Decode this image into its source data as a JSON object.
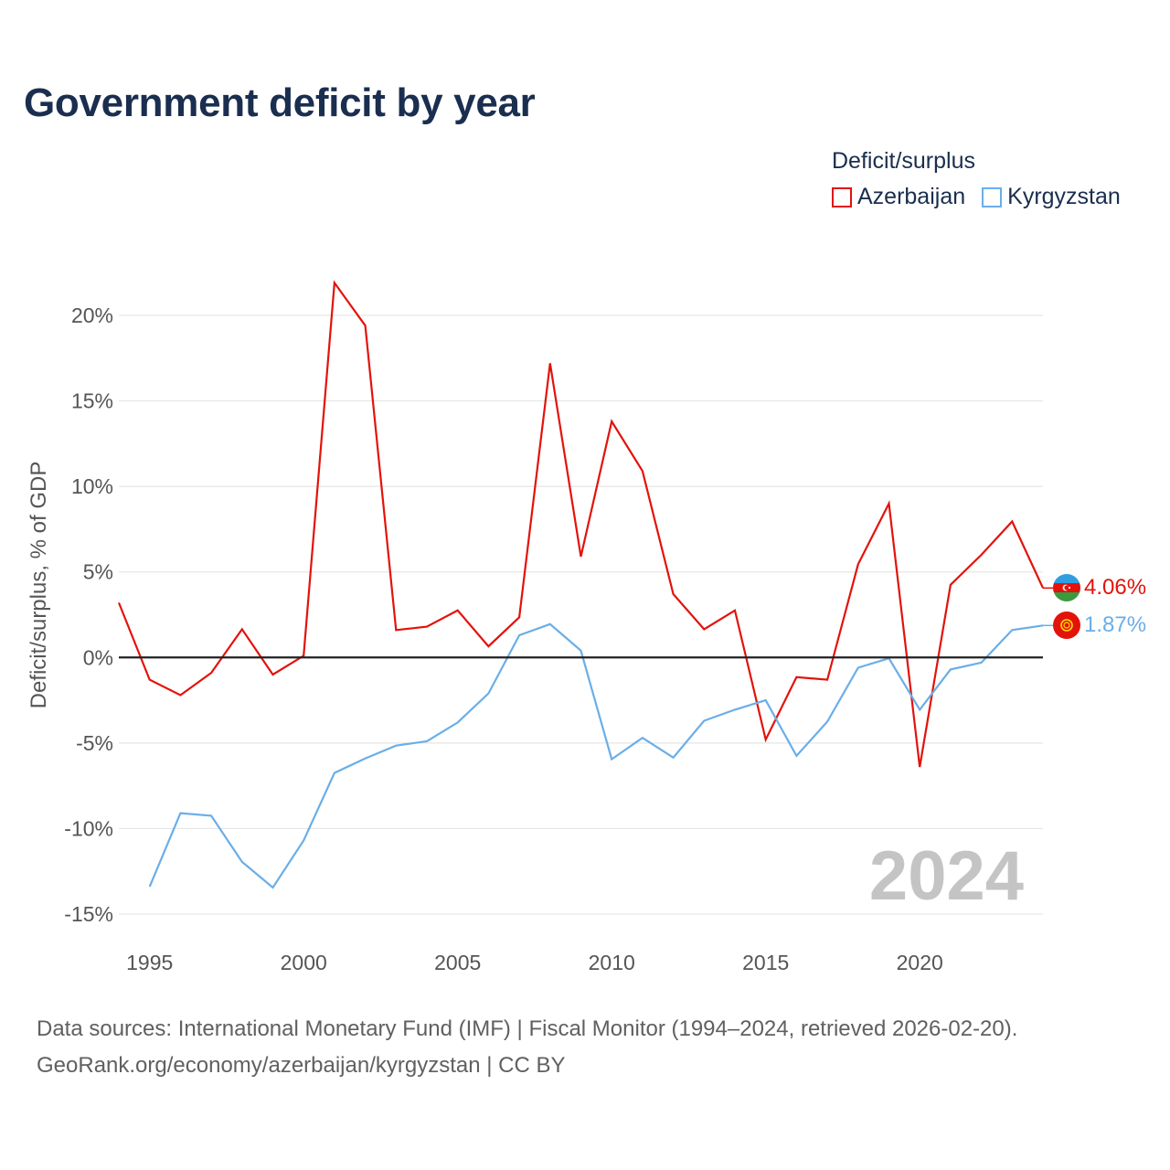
{
  "title": "Government deficit by year",
  "legend": {
    "title": "Deficit/surplus",
    "items": [
      {
        "label": "Azerbaijan",
        "color": "#e3120b"
      },
      {
        "label": "Kyrgyzstan",
        "color": "#6aaee8"
      }
    ]
  },
  "footer": {
    "line1": "Data sources: International Monetary Fund (IMF) | Fiscal Monitor (1994–2024, retrieved 2026-02-20).",
    "line2": "GeoRank.org/economy/azerbaijan/kyrgyzstan | CC BY"
  },
  "chart_data": {
    "type": "line",
    "title": "Government deficit by year",
    "ylabel": "Deficit/surplus, % of GDP",
    "xlabel": "",
    "xlim": [
      1994,
      2024
    ],
    "ylim": [
      -15,
      20
    ],
    "xticks": [
      1995,
      2000,
      2005,
      2010,
      2015,
      2020
    ],
    "yticks": [
      20,
      15,
      10,
      5,
      0,
      -5,
      -10,
      -15
    ],
    "ytick_labels": [
      "20%",
      "15%",
      "10%",
      "5%",
      "0%",
      "-5%",
      "-10%",
      "-15%"
    ],
    "xtick_labels": [
      "1995",
      "2000",
      "2005",
      "2010",
      "2015",
      "2020"
    ],
    "watermark_year": "2024",
    "series": [
      {
        "name": "Azerbaijan",
        "color": "#e3120b",
        "flag": "azerbaijan-flag",
        "end_label": "4.06%",
        "x": [
          1994,
          1995,
          1996,
          1997,
          1998,
          1999,
          2000,
          2001,
          2002,
          2003,
          2004,
          2005,
          2006,
          2007,
          2008,
          2009,
          2010,
          2011,
          2012,
          2013,
          2014,
          2015,
          2016,
          2017,
          2018,
          2019,
          2020,
          2021,
          2022,
          2023,
          2024
        ],
        "values": [
          3.2,
          -1.3,
          -2.2,
          -0.9,
          1.65,
          -1.0,
          0.1,
          21.9,
          19.4,
          1.6,
          1.8,
          2.75,
          0.65,
          2.35,
          17.2,
          5.9,
          13.8,
          10.9,
          3.7,
          1.65,
          2.75,
          -4.8,
          -1.15,
          -1.3,
          5.45,
          9.0,
          -6.4,
          4.25,
          6.0,
          7.95,
          4.06
        ]
      },
      {
        "name": "Kyrgyzstan",
        "color": "#6aaee8",
        "flag": "kyrgyzstan-flag",
        "end_label": "1.87%",
        "x": [
          1995,
          1996,
          1997,
          1998,
          1999,
          2000,
          2001,
          2002,
          2003,
          2004,
          2005,
          2006,
          2007,
          2008,
          2009,
          2010,
          2011,
          2012,
          2013,
          2014,
          2015,
          2016,
          2017,
          2018,
          2019,
          2020,
          2021,
          2022,
          2023,
          2024
        ],
        "values": [
          -13.4,
          -9.1,
          -9.25,
          -11.95,
          -13.45,
          -10.7,
          -6.75,
          -5.9,
          -5.15,
          -4.9,
          -3.8,
          -2.1,
          1.3,
          1.95,
          0.4,
          -5.95,
          -4.7,
          -5.85,
          -3.7,
          -3.05,
          -2.5,
          -5.75,
          -3.75,
          -0.6,
          -0.05,
          -3.05,
          -0.7,
          -0.3,
          1.6,
          1.87
        ]
      }
    ]
  }
}
